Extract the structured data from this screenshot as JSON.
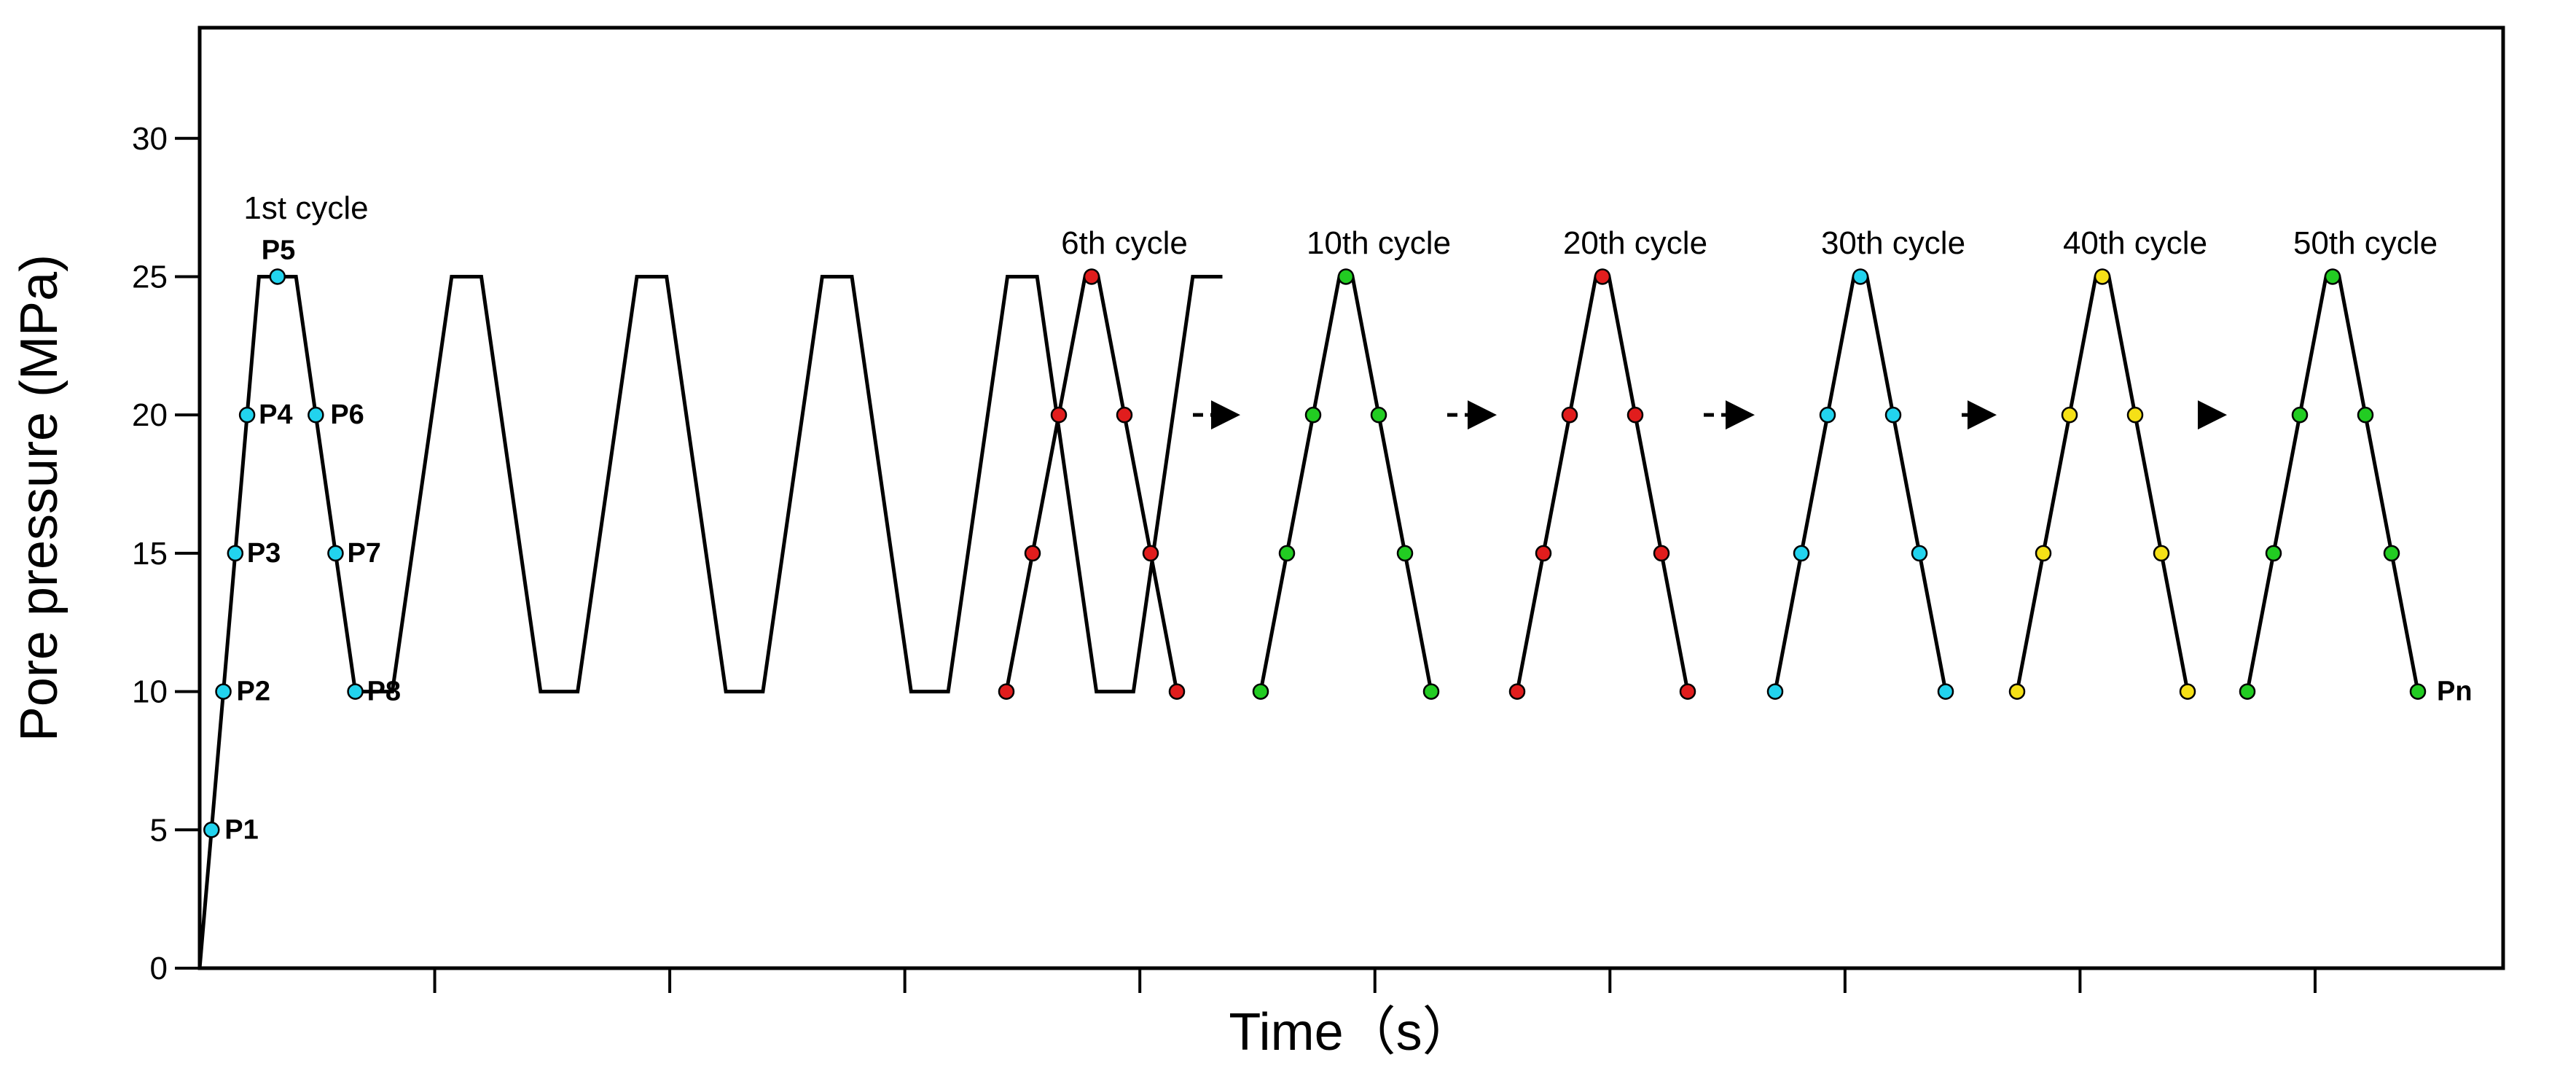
{
  "chart_data": {
    "type": "line",
    "title": "",
    "xlabel": "Time（s）",
    "ylabel": "Pore pressure (MPa)",
    "ylim": [
      0,
      34
    ],
    "yticks": [
      0,
      5,
      10,
      15,
      20,
      25,
      30
    ],
    "yticklabels": [
      "0",
      "5",
      "10",
      "15",
      "20",
      "25",
      "30"
    ],
    "xticklabels": [],
    "series": [
      {
        "name": "Pore pressure",
        "color": "#000000",
        "x": [
          0,
          0.8,
          1.3,
          2.1,
          2.6,
          3.4,
          3.8,
          4.6,
          5.1,
          5.9,
          6.3,
          7.1,
          7.6,
          8.4,
          8.8,
          9.6,
          10.1,
          10.9,
          11.3,
          12.1,
          12.6,
          13.4,
          13.8
        ],
        "y": [
          0,
          25,
          25,
          10,
          10,
          25,
          25,
          10,
          10,
          25,
          25,
          10,
          10,
          25,
          25,
          10,
          10,
          25,
          25,
          10,
          10,
          25,
          25
        ]
      }
    ],
    "arrows": 5,
    "groups": [
      {
        "cycle_label": "1st cycle",
        "marker_color": "#22d3ee",
        "points": [
          {
            "label": "P1",
            "y": 5
          },
          {
            "label": "P2",
            "y": 10
          },
          {
            "label": "P3",
            "y": 15
          },
          {
            "label": "P4",
            "y": 20
          },
          {
            "label": "P5",
            "y": 25
          },
          {
            "label": "P6",
            "y": 20
          },
          {
            "label": "P7",
            "y": 15
          },
          {
            "label": "P8",
            "y": 10
          }
        ]
      },
      {
        "cycle_label": "6th cycle",
        "marker_color": "#e11d1d",
        "points": [
          {
            "y": 10
          },
          {
            "y": 15
          },
          {
            "y": 20
          },
          {
            "y": 25
          },
          {
            "y": 20
          },
          {
            "y": 15
          },
          {
            "y": 10
          }
        ]
      },
      {
        "cycle_label": "10th cycle",
        "marker_color": "#22cc22",
        "points": [
          {
            "y": 10
          },
          {
            "y": 15
          },
          {
            "y": 20
          },
          {
            "y": 25
          },
          {
            "y": 20
          },
          {
            "y": 15
          },
          {
            "y": 10
          }
        ]
      },
      {
        "cycle_label": "20th cycle",
        "marker_color": "#e11d1d",
        "points": [
          {
            "y": 10
          },
          {
            "y": 15
          },
          {
            "y": 20
          },
          {
            "y": 25
          },
          {
            "y": 20
          },
          {
            "y": 15
          },
          {
            "y": 10
          }
        ]
      },
      {
        "cycle_label": "30th cycle",
        "marker_color": "#22d3ee",
        "points": [
          {
            "y": 10
          },
          {
            "y": 15
          },
          {
            "y": 20
          },
          {
            "y": 25
          },
          {
            "y": 20
          },
          {
            "y": 15
          },
          {
            "y": 10
          }
        ]
      },
      {
        "cycle_label": "40th cycle",
        "marker_color": "#f5e017",
        "points": [
          {
            "y": 10
          },
          {
            "y": 15
          },
          {
            "y": 20
          },
          {
            "y": 25
          },
          {
            "y": 20
          },
          {
            "y": 15
          },
          {
            "y": 10
          }
        ]
      },
      {
        "cycle_label": "50th cycle",
        "marker_color": "#22cc22",
        "points": [
          {
            "y": 10
          },
          {
            "y": 15
          },
          {
            "y": 20
          },
          {
            "y": 25
          },
          {
            "y": 20
          },
          {
            "y": 15
          },
          {
            "label": "Pn",
            "y": 10
          }
        ]
      }
    ]
  }
}
